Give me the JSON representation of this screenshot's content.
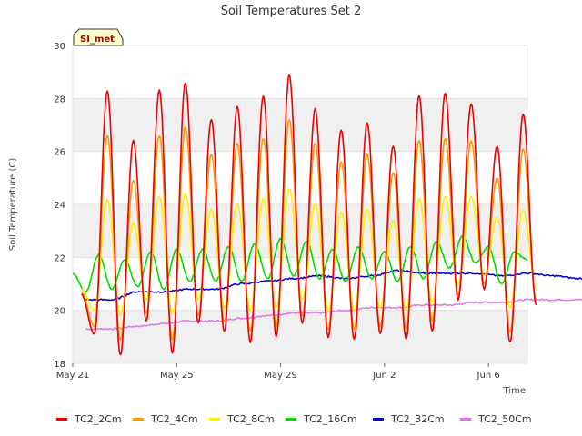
{
  "chart_data": {
    "type": "line",
    "title": "Soil Temperatures Set 2",
    "xlabel": "Time",
    "ylabel": "Soil Temperature (C)",
    "ylim": [
      18,
      30
    ],
    "yticks": [
      "18",
      "20",
      "22",
      "24",
      "26",
      "28",
      "30"
    ],
    "xlim": [
      "2024-05-21",
      "2024-06-07T12:00"
    ],
    "xticks": [
      {
        "date": "2024-05-21",
        "label": "May 21"
      },
      {
        "date": "2024-05-25",
        "label": "May 25"
      },
      {
        "date": "2024-05-29",
        "label": "May 29"
      },
      {
        "date": "2024-06-02",
        "label": "Jun 2"
      },
      {
        "date": "2024-06-06",
        "label": "Jun 6"
      }
    ],
    "background": "alternating horizontal bands (light gray)",
    "annotation": "SI_met",
    "series": [
      {
        "name": "TC2_2Cm",
        "color": "#ee0000",
        "type": "daily-cycle",
        "start": "2024-05-21T08:00",
        "step_hours": 12,
        "values": [
          20.6,
          19.1,
          28.3,
          18.3,
          26.4,
          19.6,
          28.3,
          18.4,
          28.6,
          19.5,
          27.2,
          19.2,
          27.7,
          18.8,
          28.1,
          19.0,
          28.9,
          19.5,
          27.6,
          19.0,
          26.8,
          18.9,
          27.1,
          19.1,
          26.2,
          18.9,
          28.1,
          19.2,
          28.2,
          20.4,
          27.8,
          20.8,
          26.2,
          18.8,
          27.4,
          20.2
        ]
      },
      {
        "name": "TC2_4Cm",
        "color": "#ff9900",
        "type": "daily-cycle",
        "start": "2024-05-21T08:00",
        "step_hours": 12,
        "values": [
          20.7,
          19.4,
          26.6,
          18.9,
          24.9,
          19.9,
          26.6,
          18.9,
          26.9,
          19.8,
          25.9,
          19.6,
          26.3,
          19.2,
          26.5,
          19.4,
          27.2,
          19.8,
          26.3,
          19.3,
          25.6,
          19.3,
          25.9,
          19.4,
          25.2,
          19.3,
          26.4,
          19.6,
          26.5,
          20.6,
          26.4,
          21.0,
          25.0,
          19.2,
          26.1,
          20.4
        ]
      },
      {
        "name": "TC2_8Cm",
        "color": "#ffee00",
        "type": "daily-cycle",
        "start": "2024-05-21T08:00",
        "step_hours": 12,
        "values": [
          20.8,
          20.0,
          24.2,
          19.8,
          23.3,
          20.4,
          24.3,
          19.9,
          24.4,
          20.4,
          23.8,
          20.1,
          24.0,
          20.0,
          24.2,
          20.1,
          24.6,
          20.4,
          24.0,
          20.0,
          23.7,
          20.0,
          23.8,
          20.1,
          23.4,
          20.0,
          24.2,
          20.3,
          24.3,
          21.0,
          24.3,
          21.3,
          23.5,
          20.1,
          23.8,
          20.8
        ]
      },
      {
        "name": "TC2_16Cm",
        "color": "#00dd00",
        "type": "daily-cycle",
        "start": "2024-05-21T00:00",
        "step_hours": 12,
        "values": [
          21.4,
          20.7,
          22.1,
          20.8,
          21.9,
          20.9,
          22.2,
          20.8,
          22.3,
          21.1,
          22.3,
          21.1,
          22.4,
          21.1,
          22.5,
          21.2,
          22.7,
          21.3,
          22.6,
          21.2,
          22.3,
          21.1,
          22.4,
          21.2,
          22.2,
          21.1,
          22.4,
          21.2,
          22.6,
          21.6,
          22.8,
          21.8,
          22.4,
          21.0,
          22.2,
          21.9
        ]
      },
      {
        "name": "TC2_32Cm",
        "color": "#0000cc",
        "type": "smooth",
        "start": "2024-05-21T12:00",
        "step_hours": 24,
        "values": [
          20.4,
          20.4,
          20.7,
          20.7,
          20.8,
          20.8,
          21.0,
          21.1,
          21.2,
          21.3,
          21.2,
          21.3,
          21.5,
          21.4,
          21.4,
          21.4,
          21.3,
          21.4,
          21.3,
          21.2,
          21.3,
          21.3,
          21.4,
          21.5,
          21.6,
          21.6,
          21.6,
          21.4,
          21.5,
          21.7,
          21.7,
          21.6,
          21.7,
          21.4,
          21.4
        ]
      },
      {
        "name": "TC2_50Cm",
        "color": "#dd77ee",
        "type": "smooth",
        "start": "2024-05-21T12:00",
        "step_hours": 24,
        "values": [
          19.3,
          19.3,
          19.4,
          19.5,
          19.6,
          19.6,
          19.7,
          19.8,
          19.9,
          19.9,
          20.0,
          20.1,
          20.1,
          20.2,
          20.2,
          20.3,
          20.3,
          20.4,
          20.4,
          20.4,
          20.5,
          20.5,
          20.5,
          20.5,
          20.5,
          20.5,
          20.6,
          20.6,
          20.6,
          20.7,
          20.7,
          20.7,
          20.7,
          20.7,
          20.7
        ]
      }
    ]
  }
}
